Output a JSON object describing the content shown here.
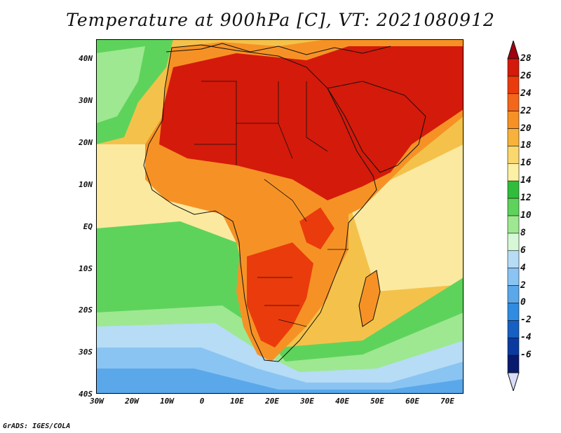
{
  "title": "Temperature at 900hPa [C], VT: 2021080912",
  "variable": "Temperature at 900hPa",
  "units": "C",
  "valid_time": "2021080912",
  "footer": "GrADS: IGES/COLA",
  "lat_labels": [
    "40N",
    "30N",
    "20N",
    "10N",
    "EQ",
    "10S",
    "20S",
    "30S",
    "40S"
  ],
  "lon_labels": [
    "30W",
    "20W",
    "10W",
    "0",
    "10E",
    "20E",
    "30E",
    "40E",
    "50E",
    "60E",
    "70E"
  ],
  "colorbar": {
    "labels": [
      "28",
      "26",
      "24",
      "22",
      "20",
      "18",
      "16",
      "14",
      "12",
      "10",
      "8",
      "6",
      "4",
      "2",
      "0",
      "-2",
      "-4",
      "-6"
    ],
    "colors": [
      "#a0000f",
      "#d41a0a",
      "#ea3b0c",
      "#f4661a",
      "#f69225",
      "#f8b23c",
      "#fad86e",
      "#fbf0a4",
      "#2fbd3b",
      "#5ed35c",
      "#9ee891",
      "#d6f8d6",
      "#b6dcf6",
      "#8ac4f2",
      "#5aa8ea",
      "#2f8ce0",
      "#1660c4",
      "#0a3aa0",
      "#081a6e",
      "#d8dcf8"
    ]
  },
  "colors": {
    "ocean_warm": "#f4c24a",
    "ocean_mild": "#fbe9a0",
    "ocean_green": "#5ed35c",
    "ocean_cool": "#9ee891",
    "ocean_cold": "#b6dcf6",
    "ocean_colder": "#8ac4f2",
    "ocean_coldest": "#5aa8ea",
    "land_hot": "#d41a0a",
    "land_warm": "#f4661a",
    "land_mild": "#f69225"
  }
}
